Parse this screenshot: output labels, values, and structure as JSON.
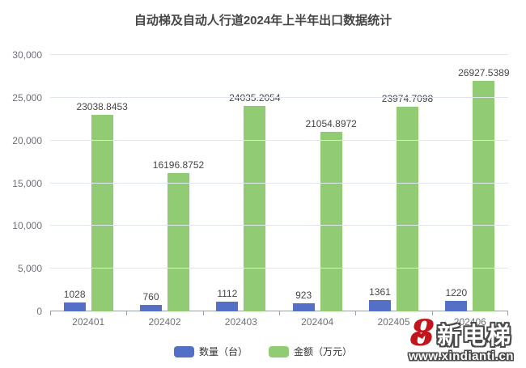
{
  "title": "自动梯及自动人行道2024年上半年出口数据统计",
  "chart_data": {
    "type": "bar",
    "title": "自动梯及自动人行道2024年上半年出口数据统计",
    "categories": [
      "202401",
      "202402",
      "202403",
      "202404",
      "202405",
      "202406"
    ],
    "series": [
      {
        "name": "数量（台）",
        "color": "#5470C6",
        "values": [
          1028,
          760,
          1112,
          923,
          1361,
          1220
        ],
        "value_labels": [
          "1028",
          "760",
          "1112",
          "923",
          "1361",
          "1220"
        ]
      },
      {
        "name": "金额（万元）",
        "color": "#91CC75",
        "values": [
          23038.8453,
          16196.8752,
          24035.2054,
          21054.8972,
          23974.7098,
          26927.5389
        ],
        "value_labels": [
          "23038.8453",
          "16196.8752",
          "24035.2054",
          "21054.8972",
          "23974.7098",
          "26927.5389"
        ]
      }
    ],
    "xlabel": "",
    "ylabel": "",
    "ylim": [
      0,
      30000
    ],
    "yticks": [
      0,
      5000,
      10000,
      15000,
      20000,
      25000,
      30000
    ],
    "ytick_labels": [
      "0",
      "5,000",
      "10,000",
      "15,000",
      "20,000",
      "25,000",
      "30,000"
    ],
    "grid": true,
    "legend_position": "bottom"
  },
  "legend": {
    "items": [
      {
        "label": "数量（台）",
        "color": "#5470C6"
      },
      {
        "label": "金额（万元）",
        "color": "#91CC75"
      }
    ]
  },
  "watermark": {
    "figure_8": "8",
    "heart": "❤",
    "name": "新电梯",
    "url": "www.xindianti.cn",
    "accent_color": "#c2151c"
  },
  "colors": {
    "bar_blue": "#5470C6",
    "bar_green": "#91CC75",
    "gridline": "#E0E6F1",
    "axis": "#9aa0a6",
    "title_text": "#464646",
    "tick_text": "#6E7079"
  }
}
